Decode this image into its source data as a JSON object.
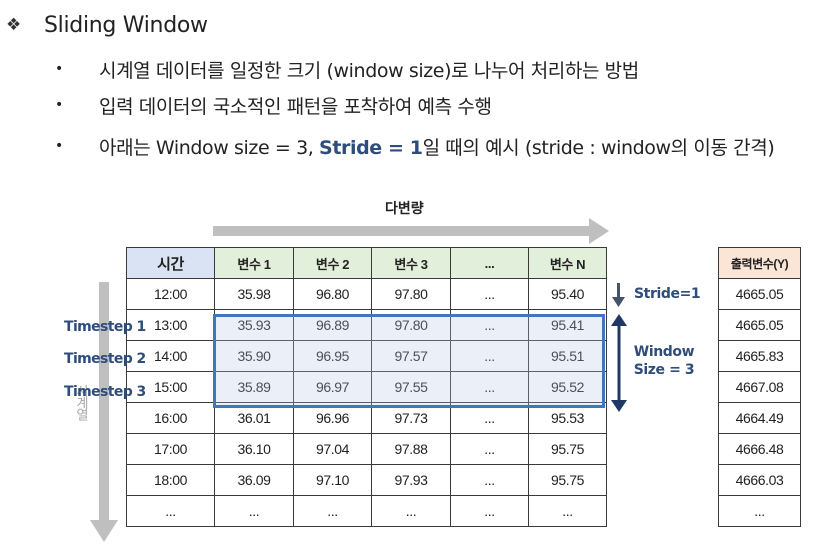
{
  "title": "Sliding Window",
  "title_icon": "diamond-bullet-icon",
  "bullets": [
    {
      "text": "시계열 데이터를 일정한 크기 (window size)로 나누어 처리하는 방법"
    },
    {
      "text": "입력 데이터의 국소적인 패턴을 포착하여 예측 수행"
    },
    {
      "pre": "아래는 Window size = 3, ",
      "strong": "Stride = 1",
      "post": "일 때의 예시 (stride : window의 이동 간격)"
    }
  ],
  "horizontal_label": "다변량",
  "vertical_label": "시계열",
  "columns": [
    "시간",
    "변수 1",
    "변수 2",
    "변수 3",
    "...",
    "변수 N"
  ],
  "output_header": "출력변수(Y)",
  "rows": [
    [
      "12:00",
      "35.98",
      "96.80",
      "97.80",
      "...",
      "95.40"
    ],
    [
      "13:00",
      "35.93",
      "96.89",
      "97.80",
      "...",
      "95.41"
    ],
    [
      "14:00",
      "35.90",
      "96.95",
      "97.57",
      "...",
      "95.51"
    ],
    [
      "15:00",
      "35.89",
      "96.97",
      "97.55",
      "...",
      "95.52"
    ],
    [
      "16:00",
      "36.01",
      "96.96",
      "97.73",
      "...",
      "95.53"
    ],
    [
      "17:00",
      "36.10",
      "97.04",
      "97.88",
      "...",
      "95.75"
    ],
    [
      "18:00",
      "36.09",
      "97.10",
      "97.93",
      "...",
      "95.75"
    ],
    [
      "...",
      "...",
      "...",
      "...",
      "...",
      "..."
    ]
  ],
  "outputs": [
    "4665.05",
    "4665.05",
    "4665.83",
    "4667.08",
    "4664.49",
    "4666.48",
    "4666.03",
    "..."
  ],
  "timestep_labels": [
    "Timestep 1",
    "Timestep 2",
    "Timestep 3"
  ],
  "stride_label": "Stride=1",
  "window_label_line1": "Window",
  "window_label_line2": "Size = 3",
  "colors": {
    "accent": "#2E4D7B",
    "window_border": "#4472C4",
    "time_header_bg": "#DAE3F3",
    "var_header_bg": "#E2EFDA",
    "output_header_bg": "#FBE5D6",
    "arrow_gray": "#BFBFBF"
  }
}
